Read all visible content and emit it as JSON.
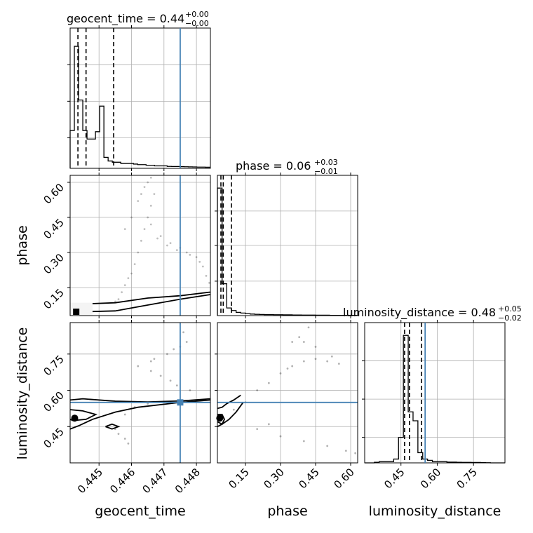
{
  "chart_data": {
    "type": "corner",
    "parameters": [
      "geocent_time",
      "phase",
      "luminosity_distance"
    ],
    "truths": [
      0.4475,
      null,
      0.55
    ],
    "truth_color": "#4682b4",
    "line_color": "#000000",
    "grid": true,
    "panels": {
      "diag": [
        {
          "param": "geocent_time",
          "title_text": "geocent_time = 0.44",
          "title_sup": "+0.00",
          "title_sub": "−0.00",
          "range": [
            0.44411,
            0.44843
          ],
          "xticks": [
            0.445,
            0.446,
            0.447,
            0.448
          ],
          "xtick_labels": [
            "0.445",
            "0.446",
            "0.447",
            "0.448"
          ],
          "bins": [
            0.44411,
            0.44424,
            0.44437,
            0.4445,
            0.44463,
            0.44476,
            0.44489,
            0.44502,
            0.44515,
            0.44528,
            0.44541,
            0.44554,
            0.44567,
            0.4458,
            0.44593,
            0.44606,
            0.44619,
            0.44632,
            0.44645,
            0.44658,
            0.44671,
            0.44684,
            0.44697,
            0.4471,
            0.44723,
            0.44736,
            0.44749,
            0.44762,
            0.44775,
            0.44788,
            0.44801,
            0.44814,
            0.44827,
            0.44843
          ],
          "counts": [
            31,
            100,
            56,
            31,
            24,
            24,
            30,
            51,
            9,
            6,
            5,
            5,
            4,
            4,
            4,
            3.5,
            3,
            3,
            2.5,
            2.5,
            2,
            2,
            2,
            1.6,
            1.5,
            1.5,
            1.4,
            1.3,
            1.2,
            1.1,
            1,
            1,
            0.9
          ],
          "quantile_lines": [
            0.44435,
            0.4446,
            0.44545
          ],
          "ymax": 115,
          "ytick_positions": [
            25,
            55,
            85
          ]
        },
        {
          "param": "phase",
          "title_text": "phase = 0.06",
          "title_sup": "+0.03",
          "title_sub": "−0.01",
          "range": [
            0.03,
            0.63
          ],
          "xticks": [
            0.15,
            0.3,
            0.45,
            0.6
          ],
          "xtick_labels": [
            "0.15",
            "0.30",
            "0.45",
            "0.60"
          ],
          "bins": [
            0.03,
            0.05,
            0.07,
            0.09,
            0.11,
            0.13,
            0.15,
            0.17,
            0.19,
            0.21,
            0.23,
            0.25,
            0.27,
            0.29,
            0.31,
            0.33,
            0.35,
            0.37,
            0.39,
            0.41,
            0.43,
            0.45,
            0.47,
            0.49,
            0.51,
            0.53,
            0.55,
            0.57,
            0.59,
            0.61,
            0.63
          ],
          "counts": [
            100,
            25,
            6,
            4,
            2.5,
            2,
            1.5,
            1.2,
            1,
            0.9,
            0.8,
            0.8,
            0.7,
            0.7,
            0.6,
            0.6,
            0.5,
            0.5,
            0.4,
            0.4,
            0.4,
            0.3,
            0.3,
            0.3,
            0.2,
            0.2,
            0.2,
            0.2,
            0.2,
            0.2
          ],
          "quantile_lines": [
            0.045,
            0.055,
            0.09
          ],
          "ymax": 110,
          "ytick_positions": [
            27,
            55,
            82
          ]
        },
        {
          "param": "luminosity_distance",
          "title_text": "luminosity_distance = 0.48",
          "title_sup": "+0.05",
          "title_sub": "−0.02",
          "range": [
            0.3,
            0.88
          ],
          "xticks": [
            0.45,
            0.6,
            0.75
          ],
          "xtick_labels": [
            "0.45",
            "0.60",
            "0.75"
          ],
          "bins": [
            0.3,
            0.32,
            0.34,
            0.36,
            0.38,
            0.4,
            0.42,
            0.44,
            0.46,
            0.48,
            0.5,
            0.52,
            0.54,
            0.56,
            0.58,
            0.6,
            0.62,
            0.64,
            0.66,
            0.68,
            0.7,
            0.72,
            0.74,
            0.76,
            0.78,
            0.8,
            0.82,
            0.84,
            0.86,
            0.88
          ],
          "counts": [
            0,
            0,
            0.5,
            1,
            1,
            1,
            3,
            20,
            100,
            40,
            33,
            8,
            3,
            2,
            1,
            1,
            1,
            0.6,
            0.6,
            0.5,
            0.4,
            0.4,
            0.3,
            0.3,
            0.2,
            0.1,
            0,
            0,
            0
          ],
          "quantile_lines": [
            0.465,
            0.485,
            0.535
          ],
          "ymax": 110,
          "ytick_positions": [
            20,
            50,
            80
          ]
        }
      ],
      "off_diag": [
        {
          "x": "geocent_time",
          "y": "phase",
          "xrange": [
            0.44411,
            0.44843
          ],
          "yrange": [
            0.03,
            0.63
          ],
          "yticks": [
            0.15,
            0.3,
            0.45,
            0.6
          ],
          "ytick_labels": [
            "0.15",
            "0.30",
            "0.45",
            "0.60"
          ],
          "samples": [
            [
              0.4455,
              0.09
            ],
            [
              0.4456,
              0.1
            ],
            [
              0.4457,
              0.13
            ],
            [
              0.4458,
              0.16
            ],
            [
              0.4459,
              0.19
            ],
            [
              0.446,
              0.21
            ],
            [
              0.4461,
              0.25
            ],
            [
              0.4462,
              0.3
            ],
            [
              0.4463,
              0.35
            ],
            [
              0.4464,
              0.4
            ],
            [
              0.4465,
              0.45
            ],
            [
              0.4466,
              0.5
            ],
            [
              0.4467,
              0.55
            ],
            [
              0.4465,
              0.6
            ],
            [
              0.4463,
              0.55
            ],
            [
              0.4466,
              0.42
            ],
            [
              0.4468,
              0.36
            ],
            [
              0.4471,
              0.33
            ],
            [
              0.4474,
              0.31
            ],
            [
              0.4477,
              0.3
            ],
            [
              0.448,
              0.28
            ],
            [
              0.4482,
              0.24
            ],
            [
              0.4483,
              0.2
            ],
            [
              0.4484,
              0.17
            ],
            [
              0.4469,
              0.37
            ],
            [
              0.4472,
              0.34
            ],
            [
              0.4475,
              0.32
            ],
            [
              0.4478,
              0.29
            ],
            [
              0.4481,
              0.26
            ],
            [
              0.4462,
              0.52
            ],
            [
              0.4464,
              0.58
            ],
            [
              0.4466,
              0.62
            ],
            [
              0.446,
              0.45
            ],
            [
              0.4458,
              0.4
            ]
          ],
          "band": [
            [
              0.4446,
              0.08
            ],
            [
              0.4455,
              0.085
            ],
            [
              0.4465,
              0.105
            ],
            [
              0.4475,
              0.115
            ],
            [
              0.4484,
              0.13
            ]
          ]
        },
        {
          "x": "geocent_time",
          "y": "luminosity_distance",
          "xrange": [
            0.44411,
            0.44843
          ],
          "yrange": [
            0.3,
            0.88
          ],
          "yticks": [
            0.45,
            0.6,
            0.75
          ],
          "ytick_labels": [
            "0.45",
            "0.60",
            "0.75"
          ],
          "samples": [
            [
              0.4458,
              0.5
            ],
            [
              0.4461,
              0.53
            ],
            [
              0.4465,
              0.545
            ],
            [
              0.447,
              0.55
            ],
            [
              0.4476,
              0.555
            ],
            [
              0.4482,
              0.56
            ],
            [
              0.4478,
              0.6
            ],
            [
              0.4472,
              0.64
            ],
            [
              0.4466,
              0.68
            ],
            [
              0.4462,
              0.7
            ],
            [
              0.4466,
              0.72
            ],
            [
              0.4471,
              0.75
            ],
            [
              0.4475,
              0.78
            ],
            [
              0.4477,
              0.8
            ],
            [
              0.4476,
              0.84
            ],
            [
              0.4458,
              0.4
            ],
            [
              0.4456,
              0.42
            ],
            [
              0.4459,
              0.38
            ],
            [
              0.4455,
              0.44
            ],
            [
              0.4474,
              0.62
            ],
            [
              0.4469,
              0.66
            ],
            [
              0.4467,
              0.73
            ],
            [
              0.4473,
              0.77
            ]
          ],
          "truth_point": [
            0.4475,
            0.55
          ]
        },
        {
          "x": "phase",
          "y": "luminosity_distance",
          "xrange": [
            0.03,
            0.63
          ],
          "yrange": [
            0.3,
            0.88
          ],
          "samples": [
            [
              0.1,
              0.52
            ],
            [
              0.15,
              0.55
            ],
            [
              0.2,
              0.6
            ],
            [
              0.25,
              0.63
            ],
            [
              0.3,
              0.67
            ],
            [
              0.35,
              0.7
            ],
            [
              0.4,
              0.72
            ],
            [
              0.45,
              0.73
            ],
            [
              0.5,
              0.72
            ],
            [
              0.55,
              0.71
            ],
            [
              0.45,
              0.78
            ],
            [
              0.4,
              0.8
            ],
            [
              0.35,
              0.8
            ],
            [
              0.38,
              0.82
            ],
            [
              0.42,
              0.86
            ],
            [
              0.2,
              0.44
            ],
            [
              0.3,
              0.41
            ],
            [
              0.4,
              0.39
            ],
            [
              0.5,
              0.37
            ],
            [
              0.58,
              0.35
            ],
            [
              0.62,
              0.34
            ],
            [
              0.25,
              0.46
            ],
            [
              0.52,
              0.74
            ],
            [
              0.33,
              0.69
            ]
          ],
          "truth_y": 0.55
        }
      ]
    }
  }
}
